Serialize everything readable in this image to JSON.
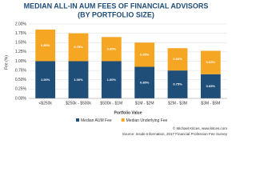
{
  "chart_data": {
    "type": "stacked_bar",
    "title": "MEDIAN ALL-IN AUM FEES OF FINANCIAL ADVISORS",
    "subtitle": "(BY PORTFOLIO SIZE)",
    "y_label": "Fee (%)",
    "x_label": "Portfolio Value",
    "categories": [
      "<$250k",
      "$250k - $500k",
      "$500k - $1M",
      "$1M - $2M",
      "$2M - $3M",
      "$3M - $5M"
    ],
    "series": [
      {
        "name": "Median AUM Fee",
        "color": "#1f4e79",
        "values": [
          1.0,
          1.0,
          1.0,
          0.85,
          0.75,
          0.65
        ],
        "value_labels": [
          "1.00%",
          "1.00%",
          "1.00%",
          "0.85%",
          "0.75%",
          "0.65%"
        ]
      },
      {
        "name": "Median Underlying Fee",
        "color": "#f5a623",
        "values": [
          0.85,
          0.75,
          0.65,
          0.65,
          0.6,
          0.63
        ],
        "value_labels": [
          "0.85%",
          "0.75%",
          "0.65%",
          "0.65%",
          "0.60%",
          "0.63%"
        ]
      }
    ],
    "ylim": [
      0,
      2
    ],
    "yticks": [
      {
        "value": 0,
        "label": "0.00%"
      },
      {
        "value": 0.25,
        "label": "0.25%"
      },
      {
        "value": 0.5,
        "label": "0.50%"
      },
      {
        "value": 0.75,
        "label": "0.75%"
      },
      {
        "value": 1,
        "label": "1.00%"
      },
      {
        "value": 1.25,
        "label": "1.25%"
      },
      {
        "value": 1.5,
        "label": "1.50%"
      },
      {
        "value": 1.75,
        "label": "1.75%"
      },
      {
        "value": 2,
        "label": "2.00%"
      }
    ],
    "grid": true,
    "footer": [
      "© Michael Kitces, www.kitces.com",
      "Source: Inside Information, 2017 Financial Profession Fee Survey"
    ]
  }
}
